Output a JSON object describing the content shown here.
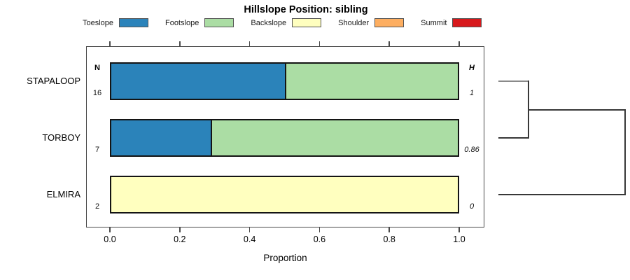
{
  "chart_data": {
    "type": "bar",
    "orientation": "horizontal",
    "stacked": true,
    "title": "Hillslope Position: sibling",
    "xlabel": "Proportion",
    "xlim": [
      0,
      1
    ],
    "x_ticks": [
      "0.0",
      "0.2",
      "0.4",
      "0.6",
      "0.8",
      "1.0"
    ],
    "grid": false,
    "legend_position": "top-center",
    "legend": [
      {
        "label": "Toeslope",
        "color": "#2B83BA"
      },
      {
        "label": "Footslope",
        "color": "#ABDDA4"
      },
      {
        "label": "Backslope",
        "color": "#FFFFBF"
      },
      {
        "label": "Shoulder",
        "color": "#FDAE61"
      },
      {
        "label": "Summit",
        "color": "#D7191C"
      }
    ],
    "annotation_headers": {
      "left": "N",
      "right": "H"
    },
    "rows": [
      {
        "label": "STAPALOOP",
        "n": "16",
        "h": "1",
        "segments": [
          {
            "name": "Toeslope",
            "value": 0.5
          },
          {
            "name": "Footslope",
            "value": 0.5
          }
        ]
      },
      {
        "label": "TORBOY",
        "n": "7",
        "h": "0.86",
        "segments": [
          {
            "name": "Toeslope",
            "value": 0.286
          },
          {
            "name": "Footslope",
            "value": 0.714
          }
        ]
      },
      {
        "label": "ELMIRA",
        "n": "2",
        "h": "0",
        "segments": [
          {
            "name": "Backslope",
            "value": 1.0
          }
        ]
      }
    ],
    "dendrogram": {
      "tree": {
        "height": 1.0,
        "children": [
          {
            "height": 0.24,
            "children": [
              "STAPALOOP",
              "TORBOY"
            ]
          },
          "ELMIRA"
        ]
      }
    }
  }
}
